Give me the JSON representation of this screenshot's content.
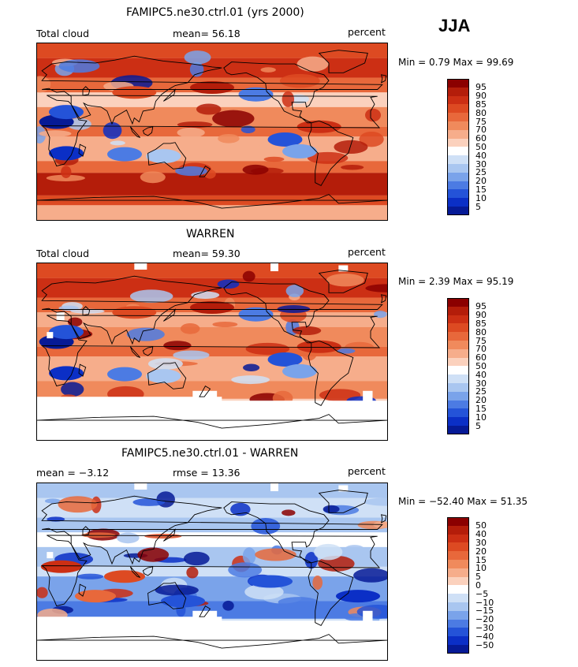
{
  "season": "JJA",
  "panels": [
    {
      "title": "FAMIPC5.ne30.ctrl.01 (yrs 2000)",
      "left": "Total cloud",
      "middle": "mean=  56.18",
      "right": "percent",
      "stats": "Min =    0.79  Max =   99.69",
      "kind": "model"
    },
    {
      "title": "WARREN",
      "left": "Total cloud",
      "middle": "mean=  59.30",
      "right": "percent",
      "stats": "Min =    2.39  Max =   95.19",
      "kind": "obs"
    },
    {
      "title": "FAMIPC5.ne30.ctrl.01 - WARREN",
      "left": "mean =   −3.12",
      "middle": "rmse =   13.36",
      "right": "percent",
      "stats": "Min = −52.40  Max =   51.35",
      "kind": "diff"
    }
  ],
  "colorbars": {
    "abs": {
      "labels": [
        "95",
        "90",
        "85",
        "80",
        "75",
        "70",
        "60",
        "50",
        "40",
        "30",
        "25",
        "20",
        "15",
        "10",
        "5"
      ],
      "colors": [
        "#8b0000",
        "#b41d0a",
        "#cc2f14",
        "#dd4a22",
        "#e8683b",
        "#f08a5c",
        "#f6ad8b",
        "#fbd1bd",
        "#ffffff",
        "#cfe0f6",
        "#a9c6f0",
        "#7aa3ea",
        "#4c7be3",
        "#2453d8",
        "#0b2fc6",
        "#061a96"
      ]
    },
    "diff": {
      "labels": [
        "50",
        "40",
        "30",
        "20",
        "15",
        "10",
        "5",
        "0",
        "−5",
        "−10",
        "−15",
        "−20",
        "−30",
        "−40",
        "−50"
      ],
      "colors": [
        "#8b0000",
        "#b41d0a",
        "#cc2f14",
        "#dd4a22",
        "#e8683b",
        "#f08a5c",
        "#f6ad8b",
        "#fbd1bd",
        "#ffffff",
        "#cfe0f6",
        "#a9c6f0",
        "#7aa3ea",
        "#4c7be3",
        "#2453d8",
        "#0b2fc6",
        "#061a96"
      ]
    }
  }
}
